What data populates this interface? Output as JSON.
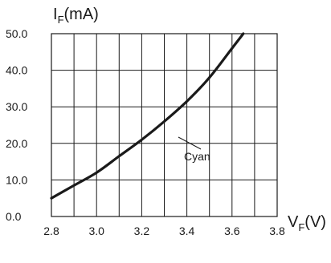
{
  "chart_data": {
    "type": "line",
    "x": [
      2.8,
      2.9,
      3.0,
      3.1,
      3.2,
      3.3,
      3.4,
      3.5,
      3.6,
      3.65
    ],
    "series": [
      {
        "values": [
          5,
          8.5,
          12,
          16.5,
          21,
          26,
          31.5,
          38,
          46,
          50
        ]
      }
    ],
    "xlim": [
      2.8,
      3.8
    ],
    "ylim": [
      0,
      50
    ],
    "xticks": [
      "2.8",
      "3.0",
      "3.2",
      "3.4",
      "3.6",
      "3.8"
    ],
    "yticks": [
      "0.0",
      "10.0",
      "20.0",
      "30.0",
      "40.0",
      "50.0"
    ],
    "xlabel": {
      "main": "V",
      "sub": "F",
      "suffix": "(V)"
    },
    "ylabel": {
      "main": "I",
      "sub": "F",
      "suffix": "(mA)"
    },
    "annotation": "Cyan",
    "grid": true,
    "colors": {
      "line": "#1a1a1a",
      "grid": "#1a1a1a"
    }
  }
}
